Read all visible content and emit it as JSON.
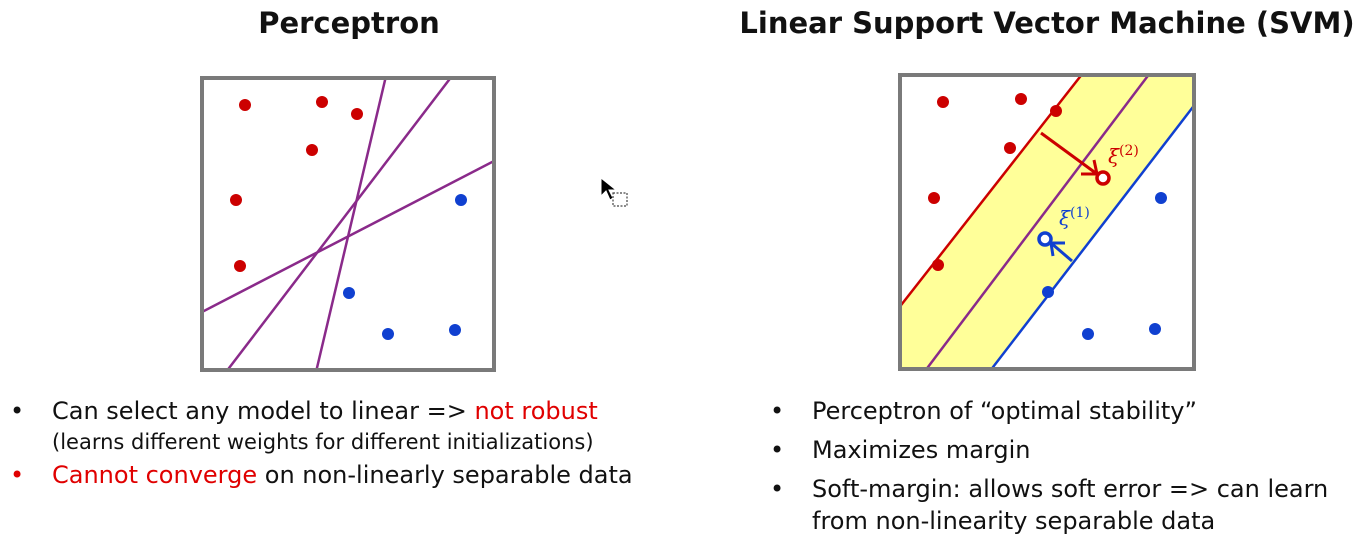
{
  "left_panel": {
    "title": "Perceptron",
    "bullets": [
      {
        "pre": "Can select any model to linear => ",
        "highlight": "not robust",
        "post": "",
        "sub": "(learns different weights for different initializations)",
        "dot_color": "#111111"
      },
      {
        "pre": "",
        "highlight": "Cannot converge",
        "post": " on non-linearly separable data",
        "sub": "",
        "dot_color": "#e00000"
      }
    ]
  },
  "right_panel": {
    "title": "Linear Support Vector Machine (SVM)",
    "xi_2_label": "ξ(2)",
    "xi_1_label": "ξ(1)",
    "bullets": [
      {
        "text": "Perceptron of “optimal stability”"
      },
      {
        "text": "Maximizes margin"
      },
      {
        "text": "Soft-margin: allows soft error => can learn from non-linearity separable data"
      }
    ]
  },
  "colors": {
    "red_point": "#cc0000",
    "blue_point": "#1040d0",
    "purple_line": "#8a2a8a",
    "margin_fill": "#ffff99",
    "frame": "#7a7a7a",
    "highlight_text": "#e00000"
  },
  "icons": {
    "cursor": "mouse-pointer-icon"
  }
}
